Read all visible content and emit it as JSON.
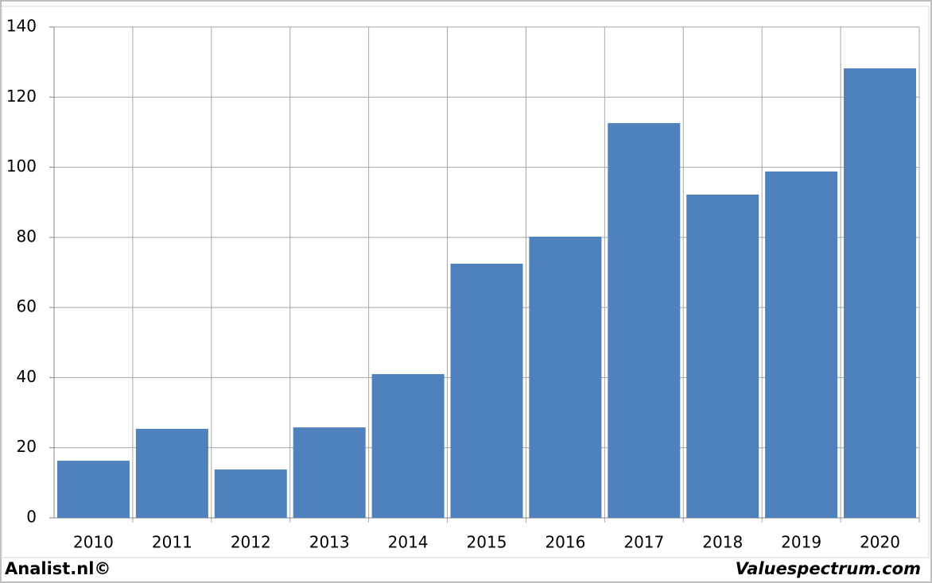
{
  "chart_data": {
    "type": "bar",
    "categories": [
      "2010",
      "2011",
      "2012",
      "2013",
      "2014",
      "2015",
      "2016",
      "2017",
      "2018",
      "2019",
      "2020"
    ],
    "values": [
      16.3,
      25.4,
      13.8,
      25.8,
      41.0,
      72.5,
      80.2,
      112.6,
      92.2,
      98.8,
      128.2
    ],
    "color": "#4f81bd",
    "ylim": [
      0,
      140
    ],
    "yticks": [
      0,
      20,
      40,
      60,
      80,
      100,
      120,
      140
    ],
    "grid": true
  },
  "footer": {
    "left": "Analist.nl©",
    "right": "Valuespectrum.com"
  }
}
